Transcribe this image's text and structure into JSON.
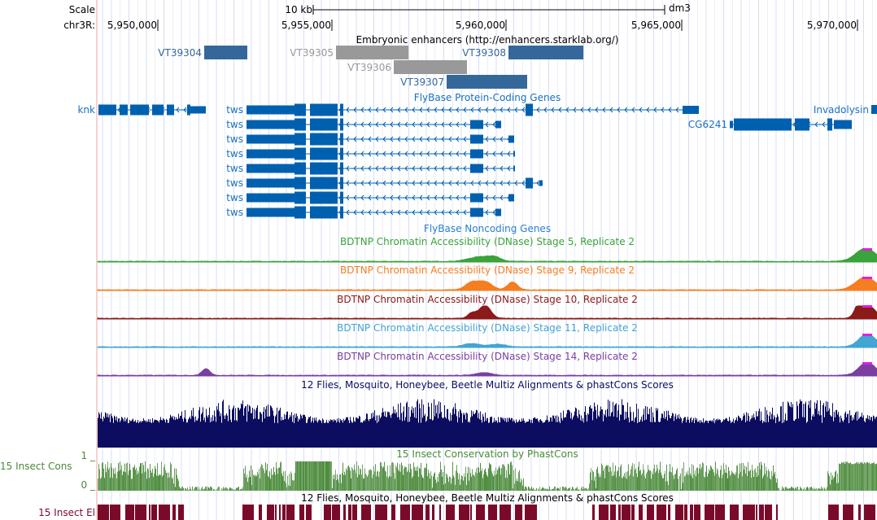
{
  "ruler": {
    "scale_label": "Scale",
    "scale_bar_label": "10 kb",
    "assembly": "dm3",
    "chrom_label": "chr3R:",
    "ticks": [
      "5,950,000",
      "5,955,000",
      "5,960,000",
      "5,965,000",
      "5,970,000"
    ]
  },
  "tracks": {
    "enhancers": {
      "title": "Embryonic enhancers (http://enhancers.starklab.org/)",
      "items": [
        {
          "name": "VT39304",
          "start": 5951326,
          "end": 5952558,
          "color": "#35689a"
        },
        {
          "name": "VT39305",
          "start": 5955093,
          "end": 5957163,
          "color": "#999999"
        },
        {
          "name": "VT39306",
          "start": 5956744,
          "end": 5958837,
          "color": "#999999"
        },
        {
          "name": "VT39307",
          "start": 5958256,
          "end": 5960558,
          "color": "#35689a"
        },
        {
          "name": "VT39308",
          "start": 5960023,
          "end": 5962163,
          "color": "#35689a"
        }
      ]
    },
    "protein_coding": {
      "title": "FlyBase Protein-Coding Genes",
      "genes": [
        "knk",
        "tws",
        "tws",
        "tws",
        "tws",
        "tws",
        "tws",
        "tws",
        "tws",
        "CG6241",
        "Invadolysin"
      ],
      "color": "#0060b0"
    },
    "noncoding": {
      "title": "FlyBase Noncoding Genes"
    },
    "dnase": [
      {
        "title": "BDTNP Chromatin Accessibility (DNase) Stage 5, Replicate 2",
        "color": "#3aa33a"
      },
      {
        "title": "BDTNP Chromatin Accessibility (DNase) Stage 9, Replicate 2",
        "color": "#f57e20"
      },
      {
        "title": "BDTNP Chromatin Accessibility (DNase) Stage 10, Replicate 2",
        "color": "#8b1a1a"
      },
      {
        "title": "BDTNP Chromatin Accessibility (DNase) Stage 11, Replicate 2",
        "color": "#42a5d2"
      },
      {
        "title": "BDTNP Chromatin Accessibility (DNase) Stage 14, Replicate 2",
        "color": "#7a3fa0"
      }
    ],
    "multiz": {
      "title": "12 Flies, Mosquito, Honeybee, Beetle Multiz Alignments & phastCons Scores",
      "color": "#0c0c60"
    },
    "phastcons": {
      "title": "15 Insect Conservation by PhastCons",
      "side_label": "15 Insect Cons",
      "max_label": "1 _",
      "min_label": "0 _",
      "color": "#4a8a3a"
    },
    "elements": {
      "title": "12 Flies, Mosquito, Honeybee, Beetle Multiz Alignments & phastCons Scores",
      "side_label": "15 Insect El",
      "color": "#7a0a2a"
    }
  }
}
